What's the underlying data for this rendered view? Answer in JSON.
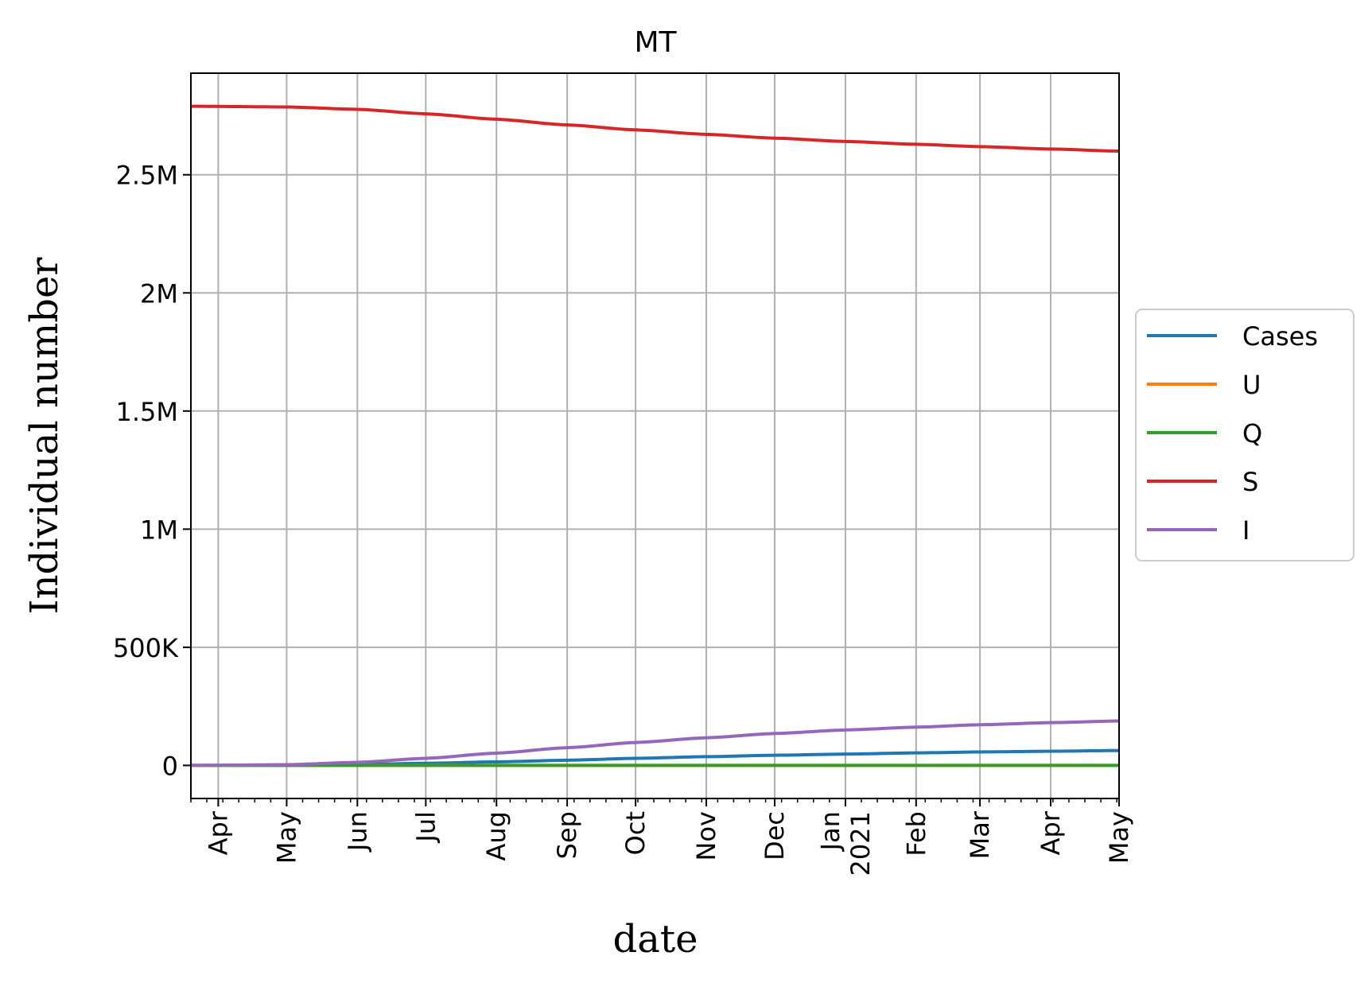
{
  "chart_data": {
    "type": "line",
    "title": "MT",
    "xlabel": "date",
    "ylabel": "Individual number",
    "grid": true,
    "legend_position": "right-center",
    "xlim": [
      "2020-03-20",
      "2021-05-01"
    ],
    "ylim": [
      -140000,
      2930000
    ],
    "y_ticks": [
      {
        "value": 0,
        "label": "0"
      },
      {
        "value": 500000,
        "label": "500K"
      },
      {
        "value": 1000000,
        "label": "1M"
      },
      {
        "value": 1500000,
        "label": "1.5M"
      },
      {
        "value": 2000000,
        "label": "2M"
      },
      {
        "value": 2500000,
        "label": "2.5M"
      }
    ],
    "x_ticks": [
      {
        "date": "2020-04-01",
        "label": "Apr"
      },
      {
        "date": "2020-05-01",
        "label": "May"
      },
      {
        "date": "2020-06-01",
        "label": "Jun"
      },
      {
        "date": "2020-07-01",
        "label": "Jul"
      },
      {
        "date": "2020-08-01",
        "label": "Aug"
      },
      {
        "date": "2020-09-01",
        "label": "Sep"
      },
      {
        "date": "2020-10-01",
        "label": "Oct"
      },
      {
        "date": "2020-11-01",
        "label": "Nov"
      },
      {
        "date": "2020-12-01",
        "label": "Dec"
      },
      {
        "date": "2021-01-01",
        "label": "Jan\n2021"
      },
      {
        "date": "2021-02-01",
        "label": "Feb"
      },
      {
        "date": "2021-03-01",
        "label": "Mar"
      },
      {
        "date": "2021-04-01",
        "label": "Apr"
      },
      {
        "date": "2021-05-01",
        "label": "May"
      }
    ],
    "x": [
      "2020-03-20",
      "2020-05-01",
      "2020-06-01",
      "2020-07-01",
      "2020-08-01",
      "2020-09-01",
      "2020-10-01",
      "2020-11-01",
      "2020-12-01",
      "2021-01-01",
      "2021-02-01",
      "2021-03-01",
      "2021-04-01",
      "2021-05-01"
    ],
    "series": [
      {
        "name": "Cases",
        "color": "#1f77b4",
        "values": [
          0,
          1000,
          4000,
          9000,
          15000,
          22000,
          30000,
          37000,
          43000,
          48000,
          53000,
          57000,
          60000,
          63000
        ]
      },
      {
        "name": "U",
        "color": "#ff7f0e",
        "values": [
          0,
          0,
          0,
          0,
          0,
          0,
          0,
          0,
          0,
          0,
          0,
          0,
          0,
          0
        ]
      },
      {
        "name": "Q",
        "color": "#2ca02c",
        "values": [
          0,
          0,
          0,
          0,
          0,
          0,
          0,
          0,
          0,
          0,
          0,
          0,
          0,
          0
        ]
      },
      {
        "name": "S",
        "color": "#d62728",
        "values": [
          2790000,
          2787000,
          2777000,
          2758000,
          2735000,
          2711000,
          2690000,
          2671000,
          2655000,
          2641000,
          2629000,
          2619000,
          2609000,
          2600000
        ]
      },
      {
        "name": "I",
        "color": "#9467bd",
        "values": [
          0,
          3000,
          13000,
          30000,
          52000,
          75000,
          97000,
          117000,
          135000,
          150000,
          162000,
          172000,
          181000,
          188000
        ]
      }
    ]
  }
}
